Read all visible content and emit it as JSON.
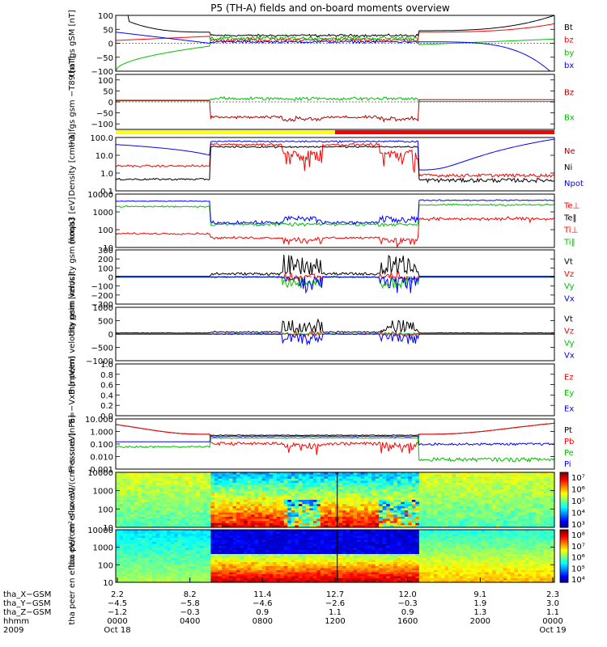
{
  "title": "P5 (TH-A) fields and on-board moments overview",
  "colors": {
    "black": "#000000",
    "red": "#ff0000",
    "green": "#00e000",
    "blue": "#0000ff",
    "dark_red": "#b00000",
    "yellow": "#ffff00"
  },
  "chart_data": [
    {
      "type": "line",
      "panel": "fgs_gsm",
      "ylabel": "tha fgs gSM [nT]",
      "ylim": [
        -100,
        100
      ],
      "ticks": [
        "100",
        "50",
        "0",
        "−50",
        "−100"
      ],
      "legend": [
        {
          "name": "Bt",
          "color": "#000000"
        },
        {
          "name": "bz",
          "color": "#ff0000"
        },
        {
          "name": "by",
          "color": "#00c000"
        },
        {
          "name": "bx",
          "color": "#0000ff"
        }
      ]
    },
    {
      "type": "line",
      "panel": "fgs_gsm_t89",
      "ylabel": "tha fgs gsm −T89 [nT]",
      "ylim": [
        -125,
        125
      ],
      "ticks": [
        "100",
        "50",
        "0",
        "−50",
        "−100"
      ],
      "legend": [
        {
          "name": "Bz",
          "color": "#b00000"
        },
        {
          "name": "Bx",
          "color": "#00c000"
        }
      ]
    },
    {
      "type": "line",
      "panel": "density",
      "ylabel": "Density [cm−3]",
      "scale": "log",
      "ylim": [
        0.1,
        100
      ],
      "ticks": [
        "100.0",
        "10.0",
        "1.0",
        "0.1"
      ],
      "legend": [
        {
          "name": "Ne",
          "color": "#b00000"
        },
        {
          "name": "Ni",
          "color": "#000000"
        },
        {
          "name": "Npot",
          "color": "#0000ff"
        }
      ]
    },
    {
      "type": "line",
      "panel": "temperature",
      "ylabel": "moqa3 [eV]",
      "scale": "log",
      "ylim": [
        10,
        10000
      ],
      "ticks": [
        "10000",
        "1000",
        "100",
        "10"
      ],
      "legend": [
        {
          "name": "Te⊥",
          "color": "#ff0000"
        },
        {
          "name": "Te‖",
          "color": "#000000"
        },
        {
          "name": "Ti⊥",
          "color": "#ff0000"
        },
        {
          "name": "Ti‖",
          "color": "#00c000"
        }
      ]
    },
    {
      "type": "line",
      "panel": "peim_velocity",
      "ylabel": "tha peim velocity gsm [km/s]",
      "ylim": [
        -300,
        300
      ],
      "ticks": [
        "300",
        "200",
        "100",
        "0",
        "−100",
        "−200",
        "−300"
      ],
      "legend": [
        {
          "name": "Vt",
          "color": "#000000"
        },
        {
          "name": "Vz",
          "color": "#ff0000"
        },
        {
          "name": "Vy",
          "color": "#00c000"
        },
        {
          "name": "Vx",
          "color": "#0000ff"
        }
      ]
    },
    {
      "type": "line",
      "panel": "peem_velocity",
      "ylabel": "tha peem velocity gsm [km/s]",
      "ylim": [
        -1000,
        1000
      ],
      "ticks": [
        "1000",
        "500",
        "0",
        "−500",
        "−1000"
      ],
      "legend": [
        {
          "name": "Vt",
          "color": "#000000"
        },
        {
          "name": "Vz",
          "color": "#ff0000"
        },
        {
          "name": "Vy",
          "color": "#00c000"
        },
        {
          "name": "Vx",
          "color": "#0000ff"
        }
      ]
    },
    {
      "type": "line",
      "panel": "efield",
      "ylabel": "E=−VxB [mV/m]",
      "ylim": [
        0,
        1
      ],
      "ticks": [
        "1.0",
        "0.8",
        "0.6",
        "0.4",
        "0.2",
        "0.0"
      ],
      "legend": [
        {
          "name": "Ez",
          "color": "#ff0000"
        },
        {
          "name": "Ey",
          "color": "#00c000"
        },
        {
          "name": "Ex",
          "color": "#0000ff"
        }
      ]
    },
    {
      "type": "line",
      "panel": "pressure",
      "ylabel": "Pressure [nPa]",
      "scale": "log",
      "ylim": [
        0.001,
        10
      ],
      "ticks": [
        "10.000",
        "1.000",
        "0.100",
        "0.010",
        "0.001"
      ],
      "legend": [
        {
          "name": "Pt",
          "color": "#000000"
        },
        {
          "name": "Pb",
          "color": "#ff0000"
        },
        {
          "name": "Pe",
          "color": "#00c000"
        },
        {
          "name": "Pi",
          "color": "#0000ff"
        }
      ]
    },
    {
      "type": "heatmap",
      "panel": "peir_eflux",
      "ylabel": "tha peir en eflux eV/(cm²-s-sr-eV)",
      "scale": "log",
      "ylim": [
        10,
        10000
      ],
      "ticks": [
        "10000",
        "1000",
        "100",
        "10"
      ],
      "colorbar_ticks": [
        "10⁷",
        "10⁶",
        "10⁵",
        "10⁴",
        "10³"
      ]
    },
    {
      "type": "heatmap",
      "panel": "peer_eflux",
      "ylabel": "tha peer en eflux eV/(cm²-s-sr-eV)",
      "scale": "log",
      "ylim": [
        10,
        10000
      ],
      "ticks": [
        "10000",
        "1000",
        "100",
        "10"
      ],
      "colorbar_ticks": [
        "10⁸",
        "10⁷",
        "10⁶",
        "10⁵",
        "10⁴"
      ]
    }
  ],
  "x_axis": {
    "row_labels": [
      "tha_X−GSM",
      "tha_Y−GSM",
      "tha_Z−GSM",
      "hhmm",
      "2009"
    ],
    "columns": [
      {
        "x": "2.2",
        "y": "−4.5",
        "z": "−1.2",
        "time": "0000",
        "date": "Oct 18"
      },
      {
        "x": "8.2",
        "y": "−5.8",
        "z": "−0.3",
        "time": "0400",
        "date": ""
      },
      {
        "x": "11.4",
        "y": "−4.6",
        "z": "0.9",
        "time": "0800",
        "date": ""
      },
      {
        "x": "12.7",
        "y": "−2.6",
        "z": "1.1",
        "time": "1200",
        "date": ""
      },
      {
        "x": "12.0",
        "y": "−0.3",
        "z": "0.9",
        "time": "1600",
        "date": ""
      },
      {
        "x": "9.1",
        "y": "1.9",
        "z": "1.3",
        "time": "2000",
        "date": ""
      },
      {
        "x": "2.3",
        "y": "3.0",
        "z": "1.1",
        "time": "0000",
        "date": "Oct 19"
      }
    ]
  }
}
